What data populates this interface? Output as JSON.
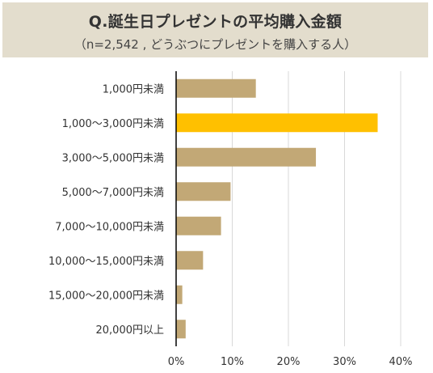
{
  "header": {
    "title": "Q.誕生日プレゼントの平均購入金額",
    "subtitle": "（n=2,542 , どうぶつにプレゼントを購入する人）"
  },
  "colors": {
    "bar": "#c2a876",
    "highlight": "#ffc000",
    "grid": "#d9d9d9",
    "header_bg": "#e3ddcd"
  },
  "chart_data": {
    "type": "bar",
    "orientation": "horizontal",
    "categories": [
      "1,000円未満",
      "1,000〜3,000円未満",
      "3,000〜5,000円未満",
      "5,000〜7,000円未満",
      "7,000〜10,000円未満",
      "10,000〜15,000円未満",
      "15,000〜20,000円未満",
      "20,000円以上"
    ],
    "values": [
      14.2,
      35.9,
      24.9,
      9.7,
      8.0,
      4.8,
      1.1,
      1.7
    ],
    "highlight_index": 1,
    "unit": "%",
    "xlim": [
      0,
      40
    ],
    "xticks": [
      "0%",
      "10%",
      "20%",
      "30%",
      "40%"
    ],
    "grid": true
  }
}
